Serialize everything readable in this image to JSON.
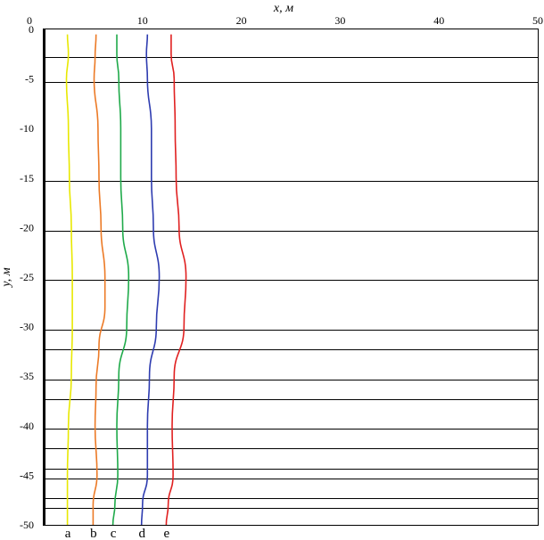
{
  "chart_data": {
    "type": "line",
    "xlabel": "x, м",
    "ylabel": "y, м",
    "xlim": [
      0,
      50
    ],
    "ylim": [
      -50,
      0
    ],
    "xticks": [
      0,
      10,
      20,
      30,
      40,
      50
    ],
    "yticks": [
      0,
      -5,
      -10,
      -15,
      -20,
      -25,
      -30,
      -35,
      -40,
      -45,
      -50
    ],
    "x_axis_position": "top",
    "horizontal_lines_y": [
      -2.8,
      -5.3,
      -15.3,
      -20.3,
      -25.3,
      -30.3,
      -32.3,
      -35.3,
      -37.3,
      -40.3,
      -42.3,
      -44.3,
      -45.3,
      -47.3,
      -48.3
    ],
    "grid": false,
    "series": [
      {
        "name": "a",
        "color": "#e8e800",
        "points": [
          [
            2.4,
            -0.5
          ],
          [
            2.5,
            -2.5
          ],
          [
            2.3,
            -5
          ],
          [
            2.5,
            -10
          ],
          [
            2.6,
            -15
          ],
          [
            2.8,
            -20
          ],
          [
            2.9,
            -25
          ],
          [
            2.9,
            -30
          ],
          [
            2.8,
            -35
          ],
          [
            2.5,
            -40
          ],
          [
            2.4,
            -45
          ],
          [
            2.4,
            -50
          ]
        ]
      },
      {
        "name": "b",
        "color": "#ec7a26",
        "points": [
          [
            5.3,
            -0.5
          ],
          [
            5.2,
            -2.8
          ],
          [
            5.1,
            -5
          ],
          [
            5.5,
            -10
          ],
          [
            5.6,
            -15
          ],
          [
            5.8,
            -20
          ],
          [
            6.2,
            -25
          ],
          [
            6.2,
            -28
          ],
          [
            5.6,
            -32
          ],
          [
            5.3,
            -36
          ],
          [
            5.2,
            -40
          ],
          [
            5.4,
            -45
          ],
          [
            5.0,
            -48
          ],
          [
            5.0,
            -50
          ]
        ]
      },
      {
        "name": "c",
        "color": "#1faa4a",
        "points": [
          [
            7.4,
            -0.5
          ],
          [
            7.4,
            -2.5
          ],
          [
            7.6,
            -5
          ],
          [
            7.8,
            -10
          ],
          [
            7.8,
            -15
          ],
          [
            8.0,
            -20
          ],
          [
            8.6,
            -25
          ],
          [
            8.4,
            -30
          ],
          [
            7.6,
            -35
          ],
          [
            7.4,
            -40
          ],
          [
            7.5,
            -45
          ],
          [
            7.2,
            -48
          ],
          [
            7.0,
            -50
          ]
        ]
      },
      {
        "name": "d",
        "color": "#2e3cb0",
        "points": [
          [
            10.5,
            -0.5
          ],
          [
            10.4,
            -2.5
          ],
          [
            10.5,
            -5
          ],
          [
            10.9,
            -10
          ],
          [
            10.9,
            -15
          ],
          [
            11.1,
            -20
          ],
          [
            11.7,
            -25
          ],
          [
            11.4,
            -30
          ],
          [
            10.7,
            -35
          ],
          [
            10.5,
            -40
          ],
          [
            10.5,
            -45
          ],
          [
            10.0,
            -48
          ],
          [
            9.9,
            -50
          ]
        ]
      },
      {
        "name": "e",
        "color": "#e02020",
        "points": [
          [
            12.9,
            -0.5
          ],
          [
            12.9,
            -2.5
          ],
          [
            13.2,
            -5
          ],
          [
            13.3,
            -10
          ],
          [
            13.4,
            -15
          ],
          [
            13.7,
            -20
          ],
          [
            14.4,
            -25
          ],
          [
            14.2,
            -30
          ],
          [
            13.2,
            -35
          ],
          [
            13.0,
            -40
          ],
          [
            13.1,
            -45
          ],
          [
            12.6,
            -48
          ],
          [
            12.4,
            -50
          ]
        ]
      }
    ]
  }
}
